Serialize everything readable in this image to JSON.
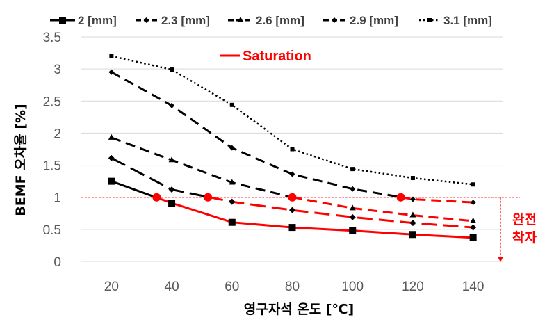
{
  "chart_data": {
    "type": "line",
    "xlabel": "영구자석 온도 [℃]",
    "ylabel": "BEMF 오차율 [%]",
    "x": [
      20,
      40,
      60,
      80,
      100,
      120,
      140
    ],
    "x_ticks": [
      "20",
      "40",
      "60",
      "80",
      "100",
      "120",
      "140"
    ],
    "ylim": [
      0,
      3.5
    ],
    "y_ticks": [
      "0",
      "0.5",
      "1",
      "1.5",
      "2",
      "2.5",
      "3",
      "3.5"
    ],
    "grid": "horizontal",
    "legend_position": "top",
    "series": [
      {
        "name": "2 [mm]",
        "values": [
          1.25,
          0.91,
          0.61,
          0.53,
          0.48,
          0.42,
          0.37
        ],
        "dash": "solid",
        "marker": "square",
        "saturated_from_x": 35
      },
      {
        "name": "2.3 [mm]",
        "values": [
          1.61,
          1.12,
          0.93,
          0.8,
          0.69,
          0.6,
          0.53
        ],
        "dash": "long-dash",
        "marker": "diamond",
        "saturated_from_x": 52
      },
      {
        "name": "2.6 [mm]",
        "values": [
          1.93,
          1.58,
          1.23,
          1.0,
          0.83,
          0.72,
          0.63
        ],
        "dash": "dash",
        "marker": "triangle",
        "saturated_from_x": 80
      },
      {
        "name": "2.9 [mm]",
        "values": [
          2.95,
          2.43,
          1.77,
          1.36,
          1.13,
          0.97,
          0.92
        ],
        "dash": "dash",
        "marker": "diamond",
        "saturated_from_x": 116
      },
      {
        "name": "3.1 [mm]",
        "values": [
          3.2,
          2.99,
          2.44,
          1.75,
          1.44,
          1.3,
          1.2
        ],
        "dash": "dot",
        "marker": "square",
        "saturated_from_x": null
      }
    ],
    "saturation": {
      "label": "Saturation",
      "threshold": 1.0,
      "points": [
        {
          "x": 35,
          "y": 1.0
        },
        {
          "x": 52,
          "y": 1.0
        },
        {
          "x": 80,
          "y": 1.0
        },
        {
          "x": 116,
          "y": 1.0
        }
      ],
      "color": "#ff0000"
    },
    "annotation": {
      "line1": "완전",
      "line2": "착자",
      "color": "#ff0000"
    },
    "colors": {
      "line": "#000000",
      "grid": "#d9d9d9",
      "tick": "#595959",
      "accent": "#ff0000"
    }
  }
}
